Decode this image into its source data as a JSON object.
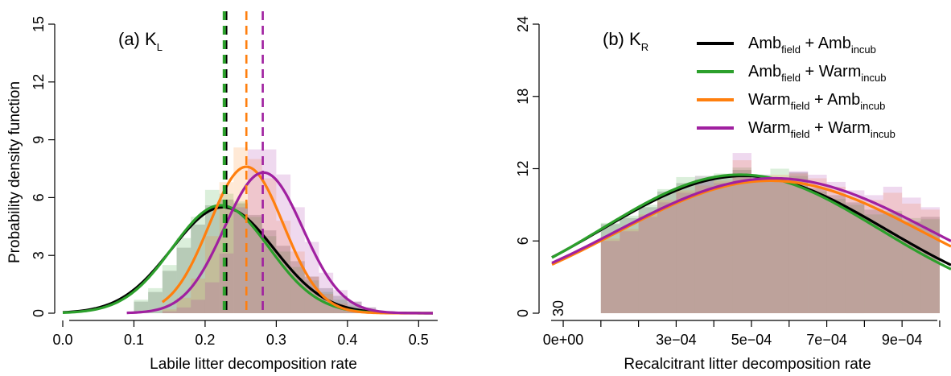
{
  "chart_data": [
    {
      "type": "line",
      "panel": "a",
      "title": "(a) K",
      "title_subscript": "L",
      "xlabel": "Labile litter decomposition rate",
      "ylabel": "Probability density function",
      "xlim": [
        0.0,
        0.52
      ],
      "ylim": [
        0,
        15
      ],
      "x_ticks": [
        "0.0",
        "0.1",
        "0.2",
        "0.3",
        "0.4",
        "0.5"
      ],
      "x_tick_values": [
        0.0,
        0.1,
        0.2,
        0.3,
        0.4,
        0.5
      ],
      "y_ticks": [
        "0",
        "3",
        "6",
        "9",
        "12",
        "15"
      ],
      "y_tick_values": [
        0,
        3,
        6,
        9,
        12,
        15
      ],
      "grid": false,
      "series": [
        {
          "key": "amb_amb",
          "color": "#000000",
          "mean": 0.225,
          "sd": 0.072,
          "peak": 5.5,
          "xmin": 0.0,
          "xmax": 0.52,
          "vline": 0.229
        },
        {
          "key": "amb_warm",
          "color": "#2ca02c",
          "mean": 0.222,
          "sd": 0.068,
          "peak": 5.6,
          "xmin": 0.0,
          "xmax": 0.52,
          "vline": 0.227
        },
        {
          "key": "warm_amb",
          "color": "#ff7f0e",
          "mean": 0.258,
          "sd": 0.052,
          "peak": 7.6,
          "xmin": 0.14,
          "xmax": 0.52,
          "vline": 0.258
        },
        {
          "key": "warm_warm",
          "color": "#a020a0",
          "mean": 0.282,
          "sd": 0.055,
          "peak": 7.3,
          "xmin": 0.09,
          "xmax": 0.52,
          "vline": 0.281
        }
      ],
      "histogram": {
        "bin_edges": [
          0.1,
          0.12,
          0.14,
          0.16,
          0.18,
          0.2,
          0.22,
          0.24,
          0.26,
          0.28,
          0.3,
          0.32,
          0.34,
          0.36,
          0.38,
          0.4,
          0.42,
          0.44,
          0.46
        ],
        "amb_amb": [
          0.6,
          1.1,
          2.2,
          3.4,
          4.6,
          5.6,
          5.9,
          5.7,
          5.1,
          4.3,
          3.5,
          2.7,
          1.9,
          1.3,
          0.9,
          0.6,
          0.3,
          0.1
        ],
        "amb_warm": [
          0.7,
          1.3,
          2.5,
          3.9,
          5.0,
          6.4,
          6.2,
          5.8,
          5.0,
          4.0,
          3.2,
          2.4,
          1.7,
          1.1,
          0.7,
          0.4,
          0.2,
          0.1
        ],
        "warm_amb": [
          0.0,
          0.0,
          0.2,
          0.8,
          1.8,
          4.0,
          6.8,
          8.6,
          8.0,
          7.0,
          4.8,
          3.2,
          1.9,
          1.0,
          0.5,
          0.2,
          0.1,
          0.0
        ],
        "warm_warm": [
          0.0,
          0.0,
          0.1,
          0.3,
          0.7,
          1.6,
          3.1,
          5.5,
          8.5,
          8.5,
          7.2,
          5.5,
          3.7,
          2.1,
          1.2,
          0.6,
          0.3,
          0.1
        ]
      }
    },
    {
      "type": "line",
      "panel": "b",
      "title": "(b) K",
      "title_subscript": "R",
      "xlabel": "Recalcitrant litter decomposition rate",
      "ylabel": "",
      "xlim": [
        -3e-05,
        0.00103
      ],
      "ylim": [
        0,
        24
      ],
      "x_ticks": [
        "0e+00",
        "3e−04",
        "5e−04",
        "7e−04",
        "9e−04"
      ],
      "x_tick_values": [
        0.0,
        0.0003,
        0.0005,
        0.0007,
        0.0009
      ],
      "x_minor_ticks": [
        0.0001,
        0.0002,
        0.0004,
        0.0006,
        0.0008,
        0.001
      ],
      "y_ticks": [
        "0",
        "6",
        "12",
        "18",
        "24"
      ],
      "y_tick_values": [
        0,
        6,
        12,
        18,
        24
      ],
      "stray_label": "30",
      "grid": false,
      "series": [
        {
          "key": "amb_amb",
          "color": "#000000",
          "mean": 0.00048,
          "sd": 0.00038,
          "peak": 11.4
        },
        {
          "key": "amb_warm",
          "color": "#2ca02c",
          "mean": 0.00047,
          "sd": 0.00037,
          "peak": 11.5
        },
        {
          "key": "warm_amb",
          "color": "#ff7f0e",
          "mean": 0.00055,
          "sd": 0.00041,
          "peak": 11.0
        },
        {
          "key": "warm_warm",
          "color": "#a020a0",
          "mean": 0.00056,
          "sd": 0.00042,
          "peak": 11.2
        }
      ],
      "histogram": {
        "bin_edges": [
          0.0001,
          0.00015,
          0.0002,
          0.00025,
          0.0003,
          0.00035,
          0.0004,
          0.00045,
          0.0005,
          0.00055,
          0.0006,
          0.00065,
          0.0007,
          0.00075,
          0.0008,
          0.00085,
          0.0009,
          0.00095,
          0.001
        ],
        "amb_amb": [
          7.4,
          7.9,
          8.8,
          10.1,
          10.8,
          11.4,
          11.3,
          11.9,
          11.5,
          11.0,
          11.7,
          10.4,
          9.8,
          9.2,
          8.6,
          8.3,
          7.6,
          8.0
        ],
        "amb_warm": [
          7.5,
          8.1,
          9.0,
          10.3,
          11.3,
          11.1,
          11.6,
          12.1,
          11.0,
          12.0,
          11.4,
          10.1,
          9.5,
          9.0,
          8.2,
          8.5,
          7.9,
          7.8
        ],
        "warm_amb": [
          6.2,
          7.0,
          8.2,
          9.4,
          10.2,
          10.6,
          11.0,
          12.7,
          11.2,
          11.5,
          11.6,
          11.2,
          10.5,
          9.6,
          9.4,
          10.0,
          9.1,
          8.6
        ],
        "warm_warm": [
          6.0,
          6.8,
          8.0,
          9.2,
          10.0,
          11.1,
          10.8,
          13.3,
          11.0,
          11.3,
          11.8,
          11.5,
          10.9,
          10.2,
          9.8,
          10.5,
          9.6,
          8.8
        ]
      }
    }
  ],
  "legend": {
    "placement": "top-right of panel b",
    "items": [
      {
        "key": "amb_amb",
        "color": "#000000",
        "a": "Amb",
        "a_sub": "field",
        "plus": " + ",
        "b": "Amb",
        "b_sub": "incub"
      },
      {
        "key": "amb_warm",
        "color": "#2ca02c",
        "a": "Amb",
        "a_sub": "field",
        "plus": " + ",
        "b": "Warm",
        "b_sub": "incub"
      },
      {
        "key": "warm_amb",
        "color": "#ff7f0e",
        "a": "Warm",
        "a_sub": "field",
        "plus": " + ",
        "b": "Amb",
        "b_sub": "incub"
      },
      {
        "key": "warm_warm",
        "color": "#a020a0",
        "a": "Warm",
        "a_sub": "field",
        "plus": " + ",
        "b": "Warm",
        "b_sub": "incub"
      }
    ]
  }
}
